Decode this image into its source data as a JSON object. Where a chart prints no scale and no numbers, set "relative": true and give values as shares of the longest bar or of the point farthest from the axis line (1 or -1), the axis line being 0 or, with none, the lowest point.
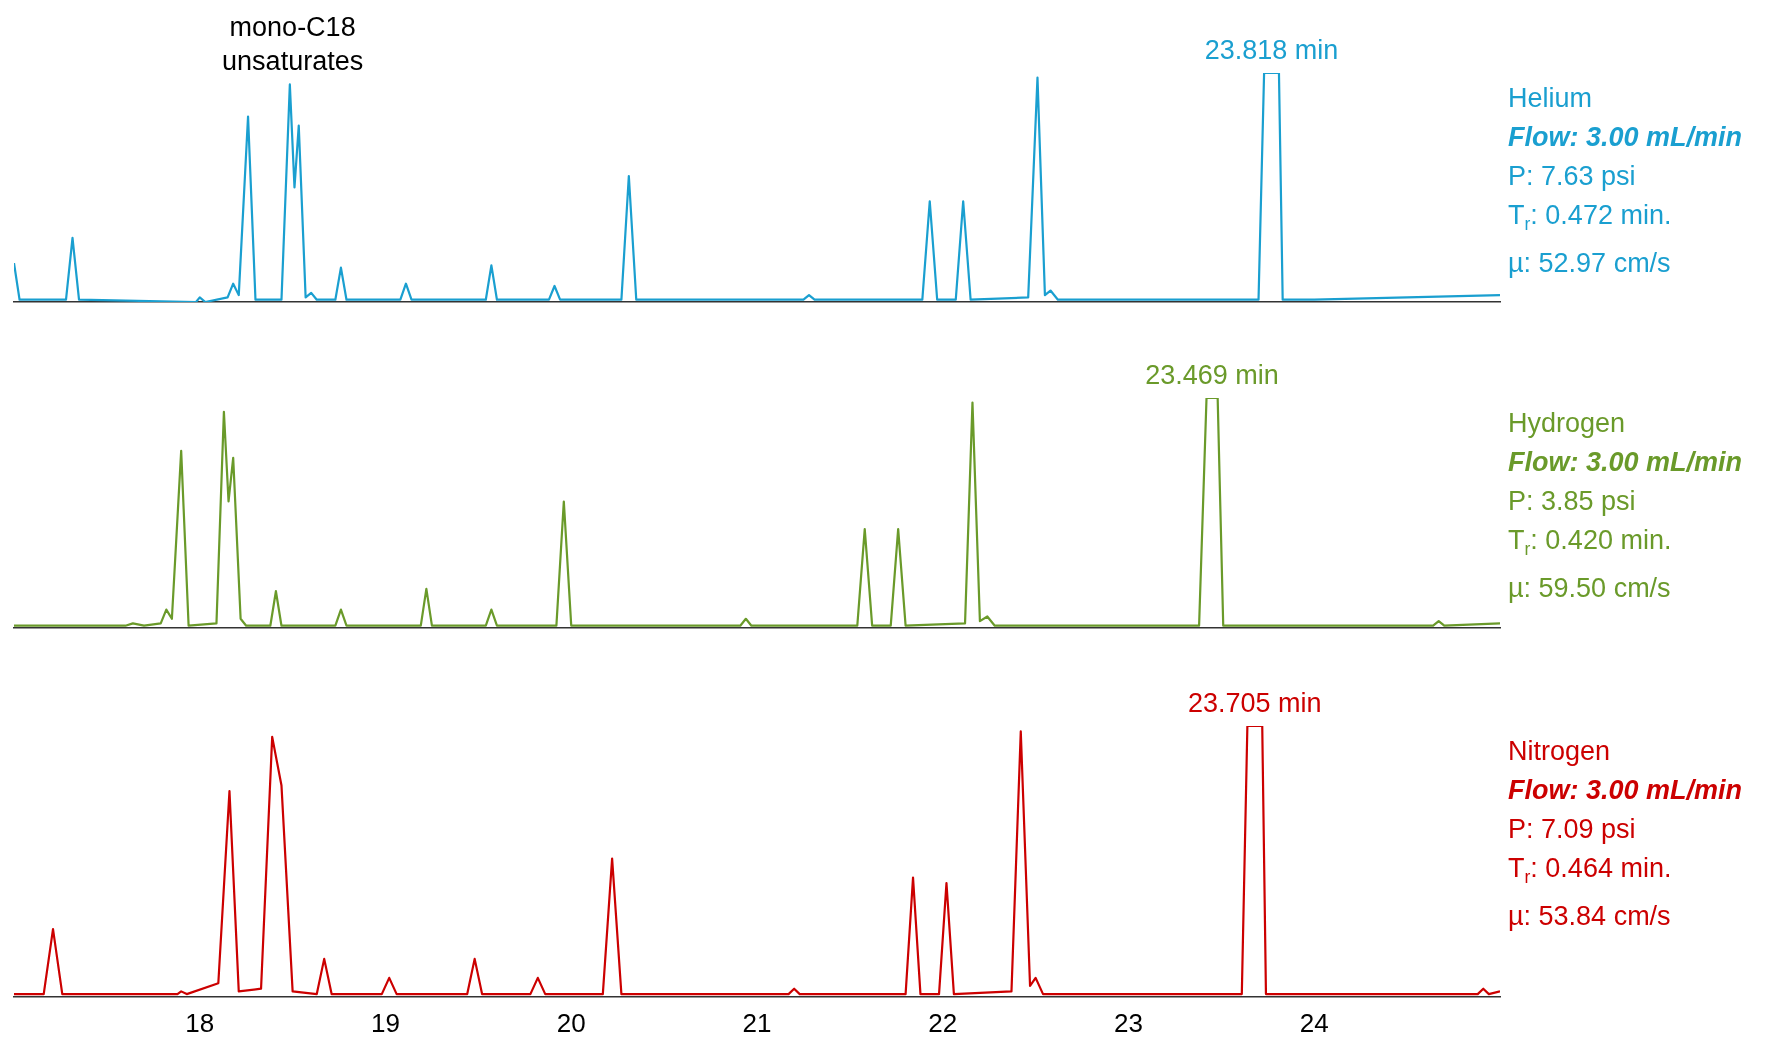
{
  "chart_data": [
    {
      "type": "line",
      "relative": true,
      "xlim": [
        17,
        25
      ],
      "xticks": [
        18,
        19,
        20,
        21,
        22,
        23,
        24
      ],
      "tick_labels": false,
      "marker": "none",
      "line_style": "solid",
      "series": [
        {
          "name": "Helium",
          "color": "#1a9fd0",
          "x": [
            17.0,
            17.03,
            17.28,
            17.315,
            17.35,
            17.98,
            18.0,
            18.03,
            18.15,
            18.18,
            18.21,
            18.26,
            18.3,
            18.44,
            18.485,
            18.51,
            18.533,
            18.57,
            18.6,
            18.63,
            18.73,
            18.76,
            18.79,
            19.08,
            19.11,
            19.14,
            19.54,
            19.57,
            19.6,
            19.88,
            19.91,
            19.94,
            20.27,
            20.31,
            20.35,
            21.25,
            21.28,
            21.31,
            21.89,
            21.93,
            21.97,
            22.07,
            22.11,
            22.15,
            22.46,
            22.51,
            22.55,
            22.58,
            22.62,
            23.7,
            23.73,
            23.81,
            23.83,
            24.0,
            25.0
          ],
          "values": [
            0.17,
            0.01,
            0.01,
            0.28,
            0.01,
            0,
            0.02,
            0,
            0.02,
            0.08,
            0.03,
            0.81,
            0.01,
            0.01,
            0.95,
            0.5,
            0.77,
            0.02,
            0.04,
            0.01,
            0.01,
            0.15,
            0.01,
            0.01,
            0.08,
            0.01,
            0.01,
            0.16,
            0.01,
            0.01,
            0.07,
            0.01,
            0.01,
            0.55,
            0.01,
            0.01,
            0.03,
            0.01,
            0.01,
            0.44,
            0.01,
            0.01,
            0.44,
            0.01,
            0.02,
            0.98,
            0.03,
            0.05,
            0.01,
            0.01,
            1,
            1,
            0.01,
            0.01,
            0.03
          ]
        }
      ],
      "annotations": [
        {
          "text": "mono-C18 unsaturates",
          "x": 18.5,
          "y": 0.95
        },
        {
          "text": "23.818 min",
          "x": 23.77,
          "y": 1
        },
        "Flow: 3.00 mL/min",
        "P: 7.63 psi",
        "T$_{r}$: 0.472 min.",
        "µ: 52.97 cm/s"
      ]
    },
    {
      "type": "line",
      "relative": true,
      "xlim": [
        17,
        25
      ],
      "xticks": [
        18,
        19,
        20,
        21,
        22,
        23,
        24
      ],
      "tick_labels": false,
      "marker": "none",
      "line_style": "solid",
      "series": [
        {
          "name": "Hydrogen",
          "color": "#6a9a2a",
          "x": [
            17.0,
            17.6,
            17.64,
            17.7,
            17.79,
            17.82,
            17.85,
            17.9,
            17.94,
            18.09,
            18.13,
            18.155,
            18.18,
            18.22,
            18.25,
            18.38,
            18.41,
            18.44,
            18.73,
            18.76,
            18.79,
            19.19,
            19.22,
            19.25,
            19.54,
            19.57,
            19.6,
            19.92,
            19.96,
            20.0,
            20.91,
            20.94,
            20.97,
            21.54,
            21.58,
            21.62,
            21.72,
            21.76,
            21.8,
            22.12,
            22.16,
            22.2,
            22.24,
            22.28,
            23.38,
            23.42,
            23.48,
            23.51,
            24.64,
            24.67,
            24.7,
            25.0
          ],
          "values": [
            0.01,
            0.01,
            0.02,
            0.01,
            0.02,
            0.08,
            0.04,
            0.77,
            0.01,
            0.02,
            0.94,
            0.55,
            0.74,
            0.04,
            0.01,
            0.01,
            0.16,
            0.01,
            0.01,
            0.08,
            0.01,
            0.01,
            0.17,
            0.01,
            0.01,
            0.08,
            0.01,
            0.01,
            0.55,
            0.01,
            0.01,
            0.04,
            0.01,
            0.01,
            0.43,
            0.01,
            0.01,
            0.43,
            0.01,
            0.02,
            0.98,
            0.03,
            0.05,
            0.01,
            0.01,
            1,
            1,
            0.01,
            0.01,
            0.03,
            0.01,
            0.02
          ]
        }
      ],
      "annotations": [
        {
          "text": "23.469 min",
          "x": 23.45,
          "y": 1
        },
        "Flow: 3.00 mL/min",
        "P: 3.85 psi",
        "T$_{r}$: 0.420 min.",
        "µ: 59.50 cm/s"
      ]
    },
    {
      "type": "line",
      "relative": true,
      "xlim": [
        17,
        25
      ],
      "xticks": [
        18,
        19,
        20,
        21,
        22,
        23,
        24
      ],
      "marker": "none",
      "line_style": "solid",
      "series": [
        {
          "name": "Nitrogen",
          "color": "#cc0000",
          "x": [
            17.0,
            17.16,
            17.21,
            17.26,
            17.88,
            17.9,
            17.93,
            18.1,
            18.16,
            18.21,
            18.33,
            18.39,
            18.44,
            18.5,
            18.63,
            18.67,
            18.71,
            18.98,
            19.02,
            19.06,
            19.44,
            19.48,
            19.52,
            19.78,
            19.82,
            19.86,
            20.17,
            20.22,
            20.27,
            21.17,
            21.2,
            21.23,
            21.8,
            21.84,
            21.88,
            21.98,
            22.02,
            22.06,
            22.37,
            22.42,
            22.47,
            22.5,
            22.54,
            23.61,
            23.64,
            23.72,
            23.74,
            24.88,
            24.91,
            24.94,
            25.0
          ],
          "values": [
            0.01,
            0.01,
            0.25,
            0.01,
            0.01,
            0.02,
            0.01,
            0.05,
            0.76,
            0.02,
            0.03,
            0.96,
            0.78,
            0.02,
            0.01,
            0.14,
            0.01,
            0.01,
            0.07,
            0.01,
            0.01,
            0.14,
            0.01,
            0.01,
            0.07,
            0.01,
            0.01,
            0.51,
            0.01,
            0.01,
            0.03,
            0.01,
            0.01,
            0.44,
            0.01,
            0.01,
            0.42,
            0.01,
            0.02,
            0.98,
            0.04,
            0.07,
            0.01,
            0.01,
            1,
            1,
            0.01,
            0.01,
            0.03,
            0.01,
            0.02
          ]
        }
      ],
      "annotations": [
        {
          "text": "23.705 min",
          "x": 23.68,
          "y": 1
        },
        "Flow: 3.00 mL/min",
        "P: 7.09 psi",
        "T$_{r}$: 0.464 min.",
        "µ: 53.84 cm/s"
      ]
    }
  ]
}
